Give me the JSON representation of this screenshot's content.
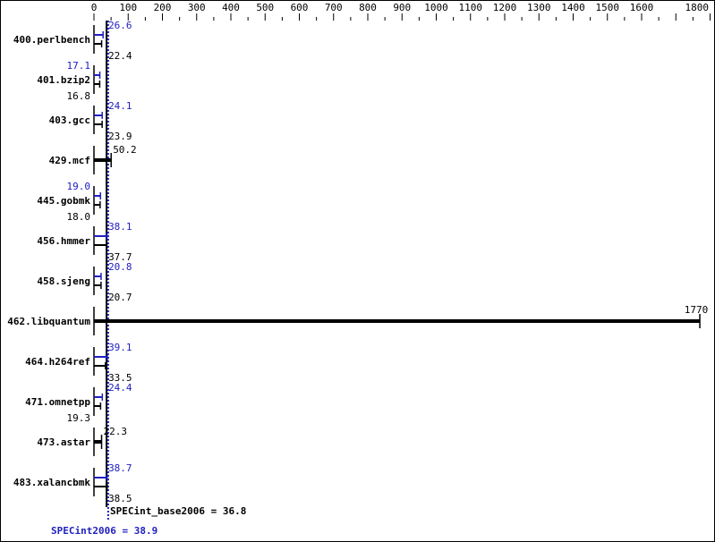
{
  "chart_data": {
    "type": "bar",
    "orientation": "horizontal",
    "xlim": [
      0,
      1800
    ],
    "ticks": [
      0,
      100,
      200,
      300,
      400,
      500,
      600,
      700,
      800,
      900,
      1000,
      1100,
      1200,
      1300,
      1400,
      1500,
      1600,
      1800
    ],
    "categories": [
      "400.perlbench",
      "401.bzip2",
      "403.gcc",
      "429.mcf",
      "445.gobmk",
      "456.hmmer",
      "458.sjeng",
      "462.libquantum",
      "464.h264ref",
      "471.omnetpp",
      "473.astar",
      "483.xalancbmk"
    ],
    "series": [
      {
        "name": "SPECint2006",
        "color": "#2020c0",
        "values": [
          26.6,
          17.1,
          24.1,
          null,
          19.0,
          38.1,
          20.8,
          null,
          39.1,
          24.4,
          null,
          38.7
        ]
      },
      {
        "name": "SPECint_base2006",
        "color": "#000000",
        "values": [
          22.4,
          16.8,
          23.9,
          50.2,
          18.0,
          37.7,
          20.7,
          1770,
          33.5,
          19.3,
          22.3,
          38.5
        ]
      }
    ],
    "base_label": "SPECint_base2006 = 36.8",
    "peak_label": "SPECint2006 = 38.9",
    "base_mean": 36.8,
    "peak_mean": 38.9
  }
}
